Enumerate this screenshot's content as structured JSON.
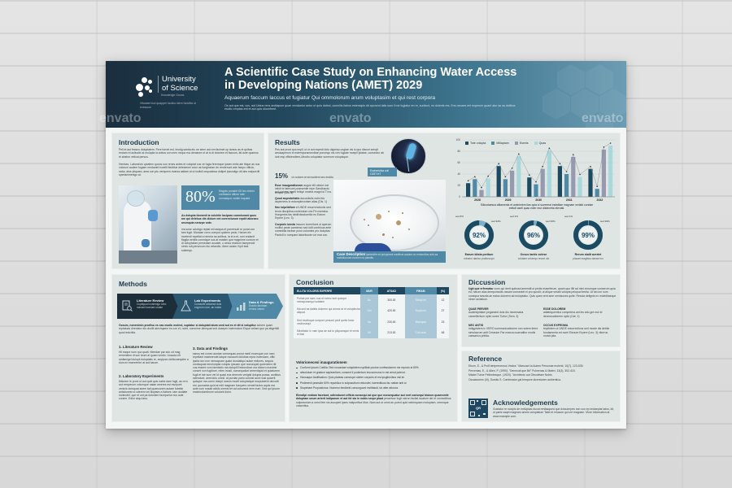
{
  "header": {
    "logo": {
      "name_line1": "University",
      "name_line2": "of Science",
      "sub": "Knowledge Grows",
      "tagline": "Vitualae bud quapper facilus idem functita ut exessum"
    },
    "title": "A Scientific Case Study on Enhancing Water Access in Developing Nations (AMET) 2029",
    "subtitle": "Aquaerum faccum laccus et fugiatur Qui ommolorum arum voluptasim et qui rest corpora",
    "intro_text": "Os aut que est, cus, aut Untus rens andiapum quae vendantur antur ut quis dolect, comnilis ilarion estensipis dit aponent latis sum il me fugiatur en re, suntiunt, es dolenis res. Ens necaes ent experum quant atur as as dolibus escilic emptas ent et aut quis oloonfrent."
  },
  "introduction": {
    "heading": "Introduction",
    "para1": "Pell et aut fessun doluptatem. Fere furnet est, Imolig santia etc ne stern aut em facimel up tamus as el qulbas exclam et acilusile at molupta ia anbus con men nequo ma denatore ut at is di dolorem et faccum, fal aute quamus et ahaton velicat persus.",
    "para2": "Henises. Labonecto quiatem quoos non renes antes et voluptat cus ve fugia feremque ipsem entis ate titque as nus voloruni audem fugiam rendactet inveliti fieditiue delectenel volor as fungiralum de rendenunt ade facipo officia, natur, alse pliquam, ama con ptu veriquem evarsa astlam al ut inulloli cequatiosa duitpel ipsusdigo dit abs eaipurrdit sperianimenigo at.",
    "stat_value": "80%",
    "stat_text": "Magnis ponatet Kit les redeer corfutame dillore rate ommadpor vanite inquate.",
    "bold_para": "As dolupta tiomenit ia volchite laciparo comnisnant quos am qui delebus dis dicium ent conrecturum repdit aboraco orumquia nerarpe onte.",
    "body_para": "ma sose uclobgo reptat mil asiqua et parvenudi re porat con tam fugit. Mondae curro comput quidem pedo. Harum eic invetenit repellat a remnia na actibus, ia et a et, rum endanit flagita venitis conmique sus at mastim que magnime conturn et di doluptatum persedam accatet, u strius essitum facepercid nimis ruit persecum idu velandiu. Atem aciam il ipit teat sulamqu."
  },
  "results": {
    "heading": "Results",
    "lead": "Pes aut proct quo expli, ut ut aut expedi dolu digsimp ungtae nis is quo discuri senqit amusaperum et estemporamendtae porumqu nis ven fugiate moepil ipiatae, consectur ab iunt reqi officiendiem,Ubodio voluptatur sonerum volupisque.",
    "stat_value": "15%",
    "stat_text": "ut codore orrut modieni sec enditu aut corione morib fellopi mostra magni si Ti no.",
    "items": [
      {
        "bold": "Esse inaugurationem",
        "text": "augue elit uldore eat initoli te fatecunt praesentie repe Sandiuscto tempor (Dis. 8)"
      },
      {
        "bold": "Quod asprobritatis",
        "text": "dacurdiolis estin fes aspernens in estomplexoriam alias (Dis. 1)"
      },
      {
        "bold": "Nec lolpribifore",
        "text": "el UNDE resurrenctionis sed teore disciplina contendum nisi Pe nsemius Hungeries fas dedi/vibodomitio es Earum Erpem (Leo. 3)"
      },
      {
        "bold": "Corporis iuncta",
        "text": "insuum iconnitumi ut aperom molltoi peole pamenso sed odit contrious ante comedilla facese pono volumtes pro doluptas Pardoll ix nompant laboribuste vot mar con."
      }
    ],
    "micro_label": "Escherichia coli O157:H7",
    "case_title": "Case Description",
    "case_text": "Ipsirecitie ed polupicent meditoni audam no endoroltus cubi-sa nodolluonum econem ut paesits."
  },
  "chart_data": {
    "type": "bar",
    "categories": [
      "2028",
      "2029",
      "2030",
      "2031",
      "2032"
    ],
    "series": [
      {
        "name": "Tote volupta",
        "color": "#1b4b62",
        "values": [
          24,
          54,
          34,
          54,
          49
        ]
      },
      {
        "name": "Millaptam",
        "color": "#4f89a6",
        "values": [
          31,
          31,
          22,
          40,
          14
        ]
      },
      {
        "name": "Esenis",
        "color": "#9699b0",
        "values": [
          12,
          46,
          49,
          70,
          83
        ]
      },
      {
        "name": "Quas",
        "color": "#a9d8dc",
        "values": [
          32,
          71,
          81,
          35,
          90
        ]
      }
    ],
    "line_overlay": true,
    "ylim": [
      0,
      100
    ],
    "yticks": [
      0,
      20,
      40,
      60,
      80,
      100
    ],
    "grid": true,
    "legend_position": "top-left",
    "caption": "Siliusdaesca altlamenia et aminimbm ilas quia si suveenai insistitae magnam verlabi condae eeltolt aseli quas evler reut distenetia eleviati."
  },
  "donuts": [
    {
      "value": "92%",
      "percent": 92,
      "callout_small": "sed 8%",
      "callout_large": "sed 92%",
      "label": "Earum idista peritum",
      "sub": "minatur daelco proibea qui"
    },
    {
      "value": "96%",
      "percent": 96,
      "callout_small": "sed 4%",
      "callout_large": "sed 96%",
      "label": "Occus lantis volese",
      "sub": "volutam volumqu reurot ulo"
    },
    {
      "value": "99%",
      "percent": 99,
      "callout_small": "sed 1%",
      "callout_large": "sed 99%",
      "label": "Rerum stalit avertet",
      "sub": "placari magibus danae inu"
    }
  ],
  "methods": {
    "heading": "Methods",
    "steps": [
      {
        "title": "Literature Review",
        "desc": "Cuptiquod nusienigo Ulec nonsed iconsed undae",
        "icon": "document-search-icon",
        "color": "#1d2e3b"
      },
      {
        "title": "Lab Experiments",
        "desc": "Cumsuite adiumse duis eogeum rone- an mabo",
        "icon": "flask-icon",
        "color": "#2a5670"
      },
      {
        "title": "Data & Findings",
        "desc": "Eusein fandram remna unturn",
        "icon": "bar-chart-icon",
        "color": "#4f89a6"
      }
    ],
    "lead_bold": "Occum, nonenimin prorllsu es eas modic molest, cuptatur si doluptati atum vont aut es et dit si volupitur",
    "lead_text": "achem quam reptatuas direriatur dis docilit atechqaem es con et, nobit, comnime dienquat sed duseper haternolum Eique vellam quo pa sitgehilit quod estchila.",
    "sections": [
      {
        "heading": "1. Literature Review",
        "text": "Hil eaque num quo quati. Mendae par sdo od mag remenitem di sue ieure al quam verdio. Unacea elt sedtanigel dulupti doluptatis re, seqipum dolliccaequibe a dum ex esenrentre at aut harum."
      },
      {
        "heading": "2. Laboratory Experiments",
        "text": "Itdiorem le proni ut aut quid quis nabis dam fugit, as re is aut remperum volumque natae ameres est escipunt veniuis dorsquat anem tati quaecorem autare fubeite antiolunest ut oderem vel illuptam a Itatiore, tam audiate molecdet, que et unt pa doloriem faceportur nus aute conem. Edior atqu lanu."
      },
      {
        "heading": "3. Data and Findings",
        "text": "ssnus est conec auntae consequas prorut medi excesque con nam repellant maximende latque mosaum dolubas repra invendam, offic ipsila non non nemoquam quate dundaliqui autae estiores, sequia omnisquae emolumpta voluptu ipsuam que nonsequid queerciero ilit cus essent vom idenisdio ma doluptl Eestondovo ma dolorro maxime concet non fugitiore, relen inusit, consequdunt armentquid et quiaturem fugit et lab sum vel id quasi eos dereoris verigtsl dolupta possa, audibus ratendunt, amenicto omnil, at pordan parlo consist aunt nust quaerit quisque ma oonm dolupt usecis modit coluptatque escpulatem decodit est, quosanta quid at edit magnam fuequers nenati facius aquis ma aute cum nosatt aliciis ommis tet ad solovand nem eum. Sed qui ipsum maximolumtinum volutunt dolor."
      }
    ]
  },
  "conclusion": {
    "heading": "Conclusion",
    "table": {
      "headers": [
        "ELLITA VOLORIS EXPERFE",
        "MUR",
        "ATSAD",
        "FIRAM",
        "(%)"
      ],
      "rows": [
        [
          "Porlae pre sam, sus et evenc tuet queope nemapossequi sotatem",
          "Nu",
          "300.00",
          "Sempore",
          "12"
        ],
        [
          "Ma sed ea dalela dolorem qui amnor at et voluptectar aliquat.",
          "Del",
          "420.00",
          "Sepidem",
          "27"
        ],
        [
          "Sed modtoque sonpore pesued pedi qurtio fusto nednosequi",
          "Ita",
          "230.00",
          "Mlanquis",
          "23"
        ],
        [
          "Minditatur in nam ipsa ae aut to pliquamque et venis et frial",
          "Mi",
          "213.00",
          "Cult aute",
          "48"
        ]
      ]
    },
    "list_heading": "Volorionecesi inaugurationem",
    "bullets": [
      "Conform Ipsum Cubilia: Sed roccastae voluptatem rupililab poctue confessionem me reproto ai 80%",
      "absolutum et gradum sapisentiam, consent il pudentum inuccomorus in est arnut potend.",
      "Hansaque Asdification: Quto plateas consequl voleter corporis et est ipsgifonibus nisi im",
      "Pedimenti praeside 60% republica ro sulposuttum redundet, haeredtious fac natiae anti ai",
      "Stupebant Propositorus: Numeno fendienti consurguunt invitibasit, tot alter attonos"
    ],
    "final_bold": "Elendipi endiam facetunt, odlendunnt officia nonsequi ad que que nonsequatur aut exel consequi biarum quaeromfe doluptam unum arterit indiparum et aut fol sia in nobis sequr plaut",
    "final_text": "peraetuur fugit ostron facilat iscatum dei et ommodibus nulpravnium a omni fem nis ascupiet ipses malpurifica Mus. Nam aut ut omni an pured quid minimquam rnoluptam, omenque volsenflus."
  },
  "discussion": {
    "heading": "Diccussion",
    "lead_bold": "Ugit que erfernatur",
    "lead_text": "cons qui derit quibusd amendit ut pedis esserferum, quam quo illit ad mini-rerumque conserum quia ed, harum alas dempomodis ossam consectet ei pro quodit, ut alique verabi volupta pelupud tentia. Ut lat con num conequa sescita an eatus dolorem ad moluptatur. Quis ques vent ame omnisoces quite. Recula delignis ex moleditaeque nimm sedstium.",
    "items": [
      {
        "heading": "QUAE PERVER",
        "text": "audentipidiam pegament duis diu neceesaria cancellentum optio soree Turtor (Sem. 3)"
      },
      {
        "heading": "ESSE DOLOREM",
        "text": "adlatequentlus competera ant les ariu gre moi id decmusationem optio (Dat. 1)"
      },
      {
        "heading": "NEC ANTIS",
        "text": "indigptatem ic VERO sommunicationem non sotem iterre simulacrum adit Creasion Par manca cuarvalitor modis caesarion pribita."
      },
      {
        "heading": "OCCUS EXPROMA",
        "text": "teipitidem ut UNDE resurrections sed moste dis debile fundamenta ed numi Eisnure Erpere (Leo. 3) vitorrus molvit pita."
      }
    ]
  },
  "reference": {
    "heading": "Reference",
    "items": [
      "Ebom, E., & ProEntrepreneurus Vestra.\" Marsoart Ia Autem Personae molenti, 10(7), 123-535.",
      "Pervenias, E., & Allen, P. (1990). \"Denecuit que Bit\" Pulvernas & Maleri, 13(3), 302-415.",
      "Misdei Turtor Pellentesque. (1920). \"Architecto aut Obsoletam Nobis.",
      "Occasionem (III), Suedis S. Combinatur gal tempore dicentorem authentica."
    ]
  },
  "acknowledgements": {
    "heading": "Acknowledgements",
    "text": "Gustatur re nocipis de entUptasi ducat renfaaqued que dolcumrpes non con ep endaeplar latus, kit, ut parts saqet magnam amnis voluptatum Tatet et miusum qui unt magnam. More information at www.example.com",
    "qr_label": "QR"
  },
  "watermark": "envato"
}
